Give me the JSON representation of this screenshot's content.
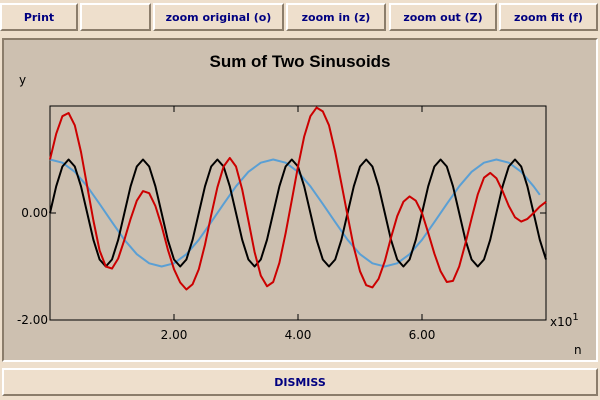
{
  "toolbar": {
    "print_label": "Print",
    "zoom_original_label": "zoom original (o)",
    "zoom_in_label": "zoom in (z)",
    "zoom_out_label": "zoom out (Z)",
    "zoom_fit_label": "zoom fit (f)"
  },
  "footer": {
    "dismiss_label": "DISMISS"
  },
  "colors": {
    "frame_bg": "#cdc0b0",
    "button_bg": "#eedfcc",
    "button_text": "#000080",
    "series_black": "#000000",
    "series_red": "#cc0000",
    "series_blue": "#5a9fd4"
  },
  "chart_data": {
    "type": "line",
    "title": "Sum of Two Sinusoids",
    "xlabel": "n",
    "ylabel": "y",
    "x_multiplier_label": "x10",
    "x_multiplier_exponent": "1",
    "xlim": [
      0,
      80
    ],
    "ylim": [
      -2.0,
      2.0
    ],
    "x_ticks": [
      {
        "value": 20,
        "label": "2.00"
      },
      {
        "value": 40,
        "label": "4.00"
      },
      {
        "value": 60,
        "label": "6.00"
      }
    ],
    "y_ticks": [
      {
        "value": 0,
        "label": "0.00"
      },
      {
        "value": -2,
        "label": "-2.00"
      }
    ],
    "grid": false,
    "series": [
      {
        "color": "#5a9fd4",
        "x": [
          0,
          2,
          4,
          6,
          8,
          10,
          12,
          14,
          16,
          18,
          20,
          22,
          24,
          26,
          28,
          30,
          32,
          34,
          36,
          38,
          40,
          42,
          44,
          46,
          48,
          50,
          52,
          54,
          56,
          58,
          60,
          62,
          64,
          66,
          68,
          70,
          72,
          74,
          76,
          78,
          79
        ],
        "y": [
          1.0,
          0.94,
          0.77,
          0.5,
          0.17,
          -0.17,
          -0.5,
          -0.77,
          -0.94,
          -1.0,
          -0.94,
          -0.77,
          -0.5,
          -0.17,
          0.17,
          0.5,
          0.77,
          0.94,
          1.0,
          0.94,
          0.77,
          0.5,
          0.17,
          -0.17,
          -0.5,
          -0.77,
          -0.94,
          -1.0,
          -0.94,
          -0.77,
          -0.5,
          -0.17,
          0.17,
          0.5,
          0.77,
          0.94,
          1.0,
          0.94,
          0.77,
          0.5,
          0.34
        ]
      },
      {
        "color": "#000000",
        "x": [
          0,
          1,
          2,
          3,
          4,
          5,
          6,
          7,
          8,
          9,
          10,
          11,
          12,
          13,
          14,
          15,
          16,
          17,
          18,
          19,
          20,
          21,
          22,
          23,
          24,
          25,
          26,
          27,
          28,
          29,
          30,
          31,
          32,
          33,
          34,
          35,
          36,
          37,
          38,
          39,
          40,
          41,
          42,
          43,
          44,
          45,
          46,
          47,
          48,
          49,
          50,
          51,
          52,
          53,
          54,
          55,
          56,
          57,
          58,
          59,
          60,
          61,
          62,
          63,
          64,
          65,
          66,
          67,
          68,
          69,
          70,
          71,
          72,
          73,
          74,
          75,
          76,
          77,
          78,
          79,
          80
        ],
        "y": [
          0.0,
          0.5,
          0.87,
          1.0,
          0.87,
          0.5,
          0.0,
          -0.5,
          -0.87,
          -1.0,
          -0.87,
          -0.5,
          0.0,
          0.5,
          0.87,
          1.0,
          0.87,
          0.5,
          0.0,
          -0.5,
          -0.87,
          -1.0,
          -0.87,
          -0.5,
          0.0,
          0.5,
          0.87,
          1.0,
          0.87,
          0.5,
          0.0,
          -0.5,
          -0.87,
          -1.0,
          -0.87,
          -0.5,
          0.0,
          0.5,
          0.87,
          1.0,
          0.87,
          0.5,
          0.0,
          -0.5,
          -0.87,
          -1.0,
          -0.87,
          -0.5,
          0.0,
          0.5,
          0.87,
          1.0,
          0.87,
          0.5,
          0.0,
          -0.5,
          -0.87,
          -1.0,
          -0.87,
          -0.5,
          0.0,
          0.5,
          0.87,
          1.0,
          0.87,
          0.5,
          0.0,
          -0.5,
          -0.87,
          -1.0,
          -0.87,
          -0.5,
          0.0,
          0.5,
          0.87,
          1.0,
          0.87,
          0.5,
          0.0,
          -0.5,
          -0.87
        ]
      },
      {
        "color": "#cc0000",
        "x": [
          0,
          1,
          2,
          3,
          4,
          5,
          6,
          7,
          8,
          9,
          10,
          11,
          12,
          13,
          14,
          15,
          16,
          17,
          18,
          19,
          20,
          21,
          22,
          23,
          24,
          25,
          26,
          27,
          28,
          29,
          30,
          31,
          32,
          33,
          34,
          35,
          36,
          37,
          38,
          39,
          40,
          41,
          42,
          43,
          44,
          45,
          46,
          47,
          48,
          49,
          50,
          51,
          52,
          53,
          54,
          55,
          56,
          57,
          58,
          59,
          60,
          61,
          62,
          63,
          64,
          65,
          66,
          67,
          68,
          69,
          70,
          71,
          72,
          73,
          74,
          75,
          76,
          77,
          78,
          79,
          80
        ],
        "y": [
          1.0,
          1.48,
          1.81,
          1.87,
          1.64,
          1.14,
          0.5,
          -0.14,
          -0.7,
          -1.0,
          -1.04,
          -0.85,
          -0.5,
          -0.11,
          0.23,
          0.41,
          0.37,
          0.13,
          -0.24,
          -0.68,
          -1.05,
          -1.3,
          -1.43,
          -1.33,
          -1.05,
          -0.59,
          -0.04,
          0.48,
          0.87,
          1.03,
          0.87,
          0.44,
          -0.14,
          -0.73,
          -1.17,
          -1.37,
          -1.29,
          -0.93,
          -0.38,
          0.24,
          0.87,
          1.43,
          1.81,
          1.97,
          1.9,
          1.64,
          1.14,
          0.55,
          -0.05,
          -0.64,
          -1.09,
          -1.35,
          -1.39,
          -1.23,
          -0.9,
          -0.46,
          -0.06,
          0.21,
          0.31,
          0.23,
          0.0,
          -0.37,
          -0.76,
          -1.09,
          -1.29,
          -1.27,
          -1.0,
          -0.57,
          -0.1,
          0.35,
          0.66,
          0.75,
          0.65,
          0.41,
          0.13,
          -0.08,
          -0.16,
          -0.11,
          0.0,
          0.12,
          0.21
        ]
      }
    ]
  }
}
